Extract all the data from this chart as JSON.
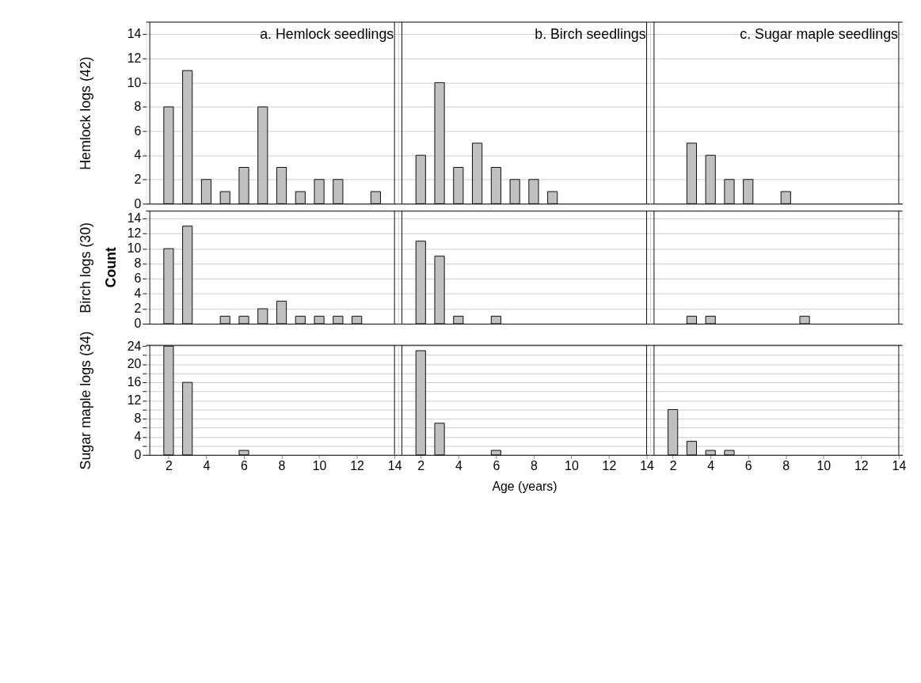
{
  "chart_data": [
    {
      "type": "bar",
      "title": "a. Hemlock seedlings",
      "ylabel": "Hemlock logs (42)",
      "x": [
        2,
        3,
        4,
        5,
        6,
        7,
        8,
        9,
        10,
        11,
        13
      ],
      "values": [
        8,
        11,
        2,
        1,
        3,
        8,
        3,
        1,
        2,
        2,
        1
      ],
      "color": "#c0c0c0",
      "xlim": [
        1,
        14
      ],
      "xticks": [
        2,
        4,
        6,
        8,
        10,
        12,
        14
      ],
      "ylim": [
        0,
        15
      ],
      "yticks": [
        0,
        2,
        4,
        6,
        8,
        10,
        12,
        14
      ],
      "grid": "y",
      "tick_labels": "y"
    },
    {
      "type": "bar",
      "title": "b. Birch seedlings",
      "x": [
        2,
        3,
        4,
        5,
        6,
        7,
        8,
        9
      ],
      "values": [
        4,
        10,
        3,
        5,
        3,
        2,
        2,
        1
      ],
      "color": "#c0c0c0",
      "xlim": [
        1,
        14
      ],
      "xticks": [
        2,
        4,
        6,
        8,
        10,
        12,
        14
      ],
      "ylim": [
        0,
        15
      ],
      "yticks": [
        0,
        2,
        4,
        6,
        8,
        10,
        12,
        14
      ],
      "grid": "y",
      "tick_labels": false
    },
    {
      "type": "bar",
      "title": "c. Sugar maple seedlings",
      "x": [
        3,
        4,
        5,
        6,
        8
      ],
      "values": [
        5,
        4,
        2,
        2,
        1
      ],
      "color": "#c0c0c0",
      "xlim": [
        1,
        14
      ],
      "xticks": [
        2,
        4,
        6,
        8,
        10,
        12,
        14
      ],
      "ylim": [
        0,
        15
      ],
      "yticks": [
        0,
        2,
        4,
        6,
        8,
        10,
        12,
        14
      ],
      "grid": "y",
      "tick_labels": false
    },
    {
      "type": "bar",
      "ylabel": "Birch logs (30)",
      "annotations": [
        "Count"
      ],
      "x": [
        2,
        3,
        5,
        6,
        7,
        8,
        9,
        10,
        11,
        12
      ],
      "values": [
        10,
        13,
        1,
        1,
        2,
        3,
        1,
        1,
        1,
        1
      ],
      "color": "#c0c0c0",
      "xlim": [
        1,
        14
      ],
      "xticks": [
        2,
        4,
        6,
        8,
        10,
        12,
        14
      ],
      "ylim": [
        0,
        15
      ],
      "yticks": [
        0,
        2,
        4,
        6,
        8,
        10,
        12,
        14
      ],
      "grid": "y",
      "tick_labels": "y"
    },
    {
      "type": "bar",
      "x": [
        2,
        3,
        4,
        6
      ],
      "values": [
        11,
        9,
        1,
        1
      ],
      "color": "#c0c0c0",
      "xlim": [
        1,
        14
      ],
      "xticks": [
        2,
        4,
        6,
        8,
        10,
        12,
        14
      ],
      "ylim": [
        0,
        15
      ],
      "yticks": [
        0,
        2,
        4,
        6,
        8,
        10,
        12,
        14
      ],
      "grid": "y",
      "tick_labels": false
    },
    {
      "type": "bar",
      "x": [
        3,
        4,
        9
      ],
      "values": [
        1,
        1,
        1
      ],
      "color": "#c0c0c0",
      "xlim": [
        1,
        14
      ],
      "xticks": [
        2,
        4,
        6,
        8,
        10,
        12,
        14
      ],
      "ylim": [
        0,
        15
      ],
      "yticks": [
        0,
        2,
        4,
        6,
        8,
        10,
        12,
        14
      ],
      "grid": "y",
      "tick_labels": false
    },
    {
      "type": "bar",
      "ylabel": "Sugar maple logs (34)",
      "x": [
        2,
        3,
        6
      ],
      "values": [
        24,
        16,
        1
      ],
      "color": "#c0c0c0",
      "xlim": [
        1,
        14
      ],
      "xticks": [
        2,
        4,
        6,
        8,
        10,
        12,
        14
      ],
      "ylim": [
        0,
        24.2
      ],
      "yticks": [
        0,
        {
          "value": 2,
          "label": null
        },
        4,
        {
          "value": 6,
          "label": null
        },
        8,
        {
          "value": 10,
          "label": null
        },
        12,
        {
          "value": 14,
          "label": null
        },
        16,
        {
          "value": 18,
          "label": null
        },
        20,
        {
          "value": 22,
          "label": null
        },
        24
      ],
      "grid": "y"
    },
    {
      "type": "bar",
      "xlabel": "Age (years)",
      "x": [
        2,
        3,
        6
      ],
      "values": [
        23,
        7,
        1
      ],
      "color": "#c0c0c0",
      "xlim": [
        1,
        14
      ],
      "xticks": [
        2,
        4,
        6,
        8,
        10,
        12,
        14
      ],
      "ylim": [
        0,
        24.2
      ],
      "yticks": [
        0,
        {
          "value": 2,
          "label": null
        },
        4,
        {
          "value": 6,
          "label": null
        },
        8,
        {
          "value": 10,
          "label": null
        },
        12,
        {
          "value": 14,
          "label": null
        },
        16,
        {
          "value": 18,
          "label": null
        },
        20,
        {
          "value": 22,
          "label": null
        },
        24
      ],
      "grid": "y",
      "tick_labels": "x"
    },
    {
      "type": "bar",
      "x": [
        2,
        3,
        4,
        5
      ],
      "values": [
        10,
        3,
        1,
        1
      ],
      "color": "#c0c0c0",
      "xlim": [
        1,
        14
      ],
      "xticks": [
        2,
        4,
        6,
        8,
        10,
        12,
        14
      ],
      "ylim": [
        0,
        24.2
      ],
      "yticks": [
        0,
        {
          "value": 2,
          "label": null
        },
        4,
        {
          "value": 6,
          "label": null
        },
        8,
        {
          "value": 10,
          "label": null
        },
        12,
        {
          "value": 14,
          "label": null
        },
        16,
        {
          "value": 18,
          "label": null
        },
        20,
        {
          "value": 22,
          "label": null
        },
        24
      ],
      "grid": "y",
      "tick_labels": "x"
    }
  ]
}
